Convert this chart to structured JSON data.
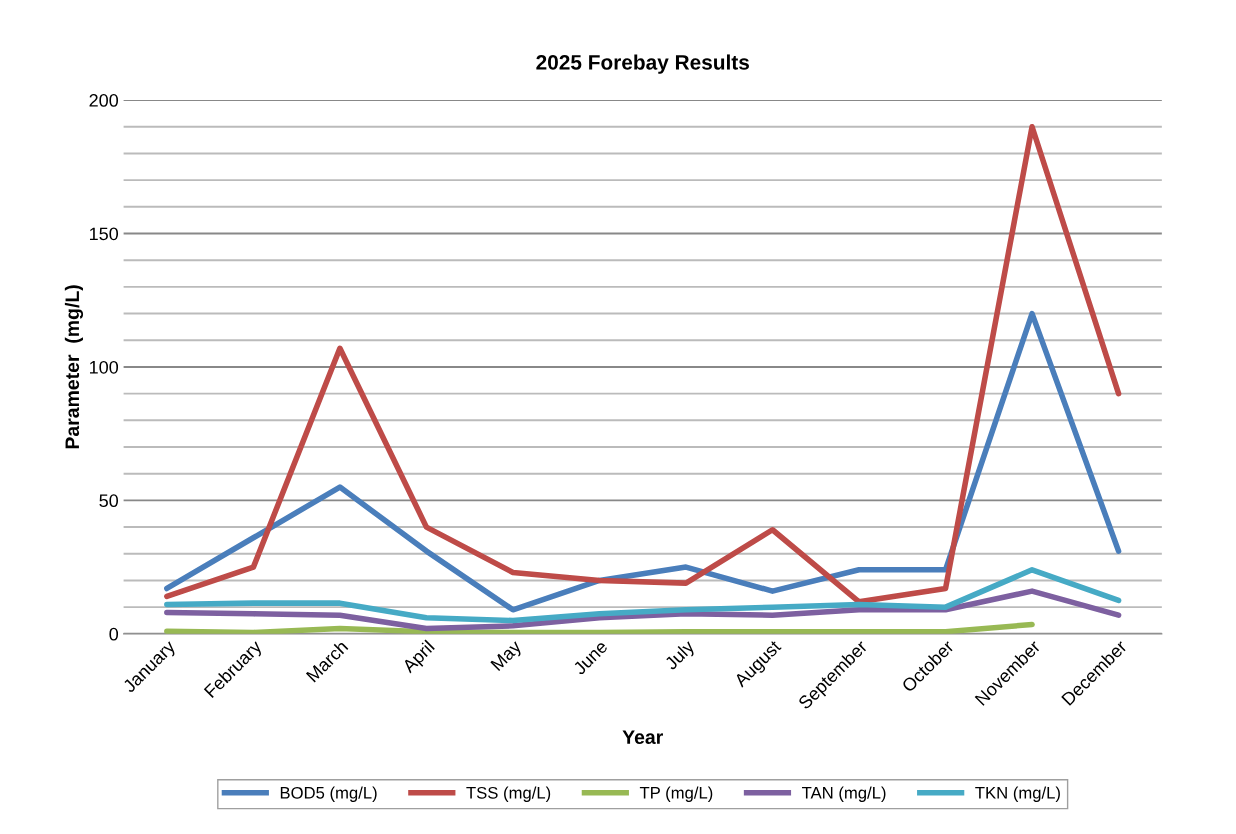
{
  "chart_data": {
    "type": "line",
    "title": "2025 Forebay Results",
    "xlabel": "Year",
    "ylabel": "Parameter  (mg/L)",
    "categories": [
      "January",
      "February",
      "March",
      "April",
      "May",
      "June",
      "July",
      "August",
      "September",
      "October",
      "November",
      "December"
    ],
    "series": [
      {
        "name": "BOD5 (mg/L)",
        "color": "#4a7ebb",
        "values": [
          17,
          36,
          55,
          31,
          9,
          20,
          25,
          16,
          24,
          24,
          120,
          31
        ]
      },
      {
        "name": "TSS (mg/L)",
        "color": "#be4b48",
        "values": [
          14,
          25,
          107,
          40,
          23,
          20,
          19,
          39,
          12,
          17,
          190,
          90
        ]
      },
      {
        "name": "TP (mg/L)",
        "color": "#98b954",
        "values": [
          1,
          0.5,
          2,
          0.8,
          0.5,
          0.5,
          0.8,
          0.8,
          0.8,
          0.8,
          3.5,
          null
        ]
      },
      {
        "name": "TAN (mg/L)",
        "color": "#7d60a0",
        "values": [
          8,
          7.5,
          7,
          2,
          3,
          6,
          7.5,
          7,
          9,
          9,
          16,
          7
        ]
      },
      {
        "name": "TKN (mg/L)",
        "color": "#46aac5",
        "values": [
          11,
          11.5,
          11.5,
          6,
          5,
          7.5,
          9,
          10,
          11,
          10,
          24,
          12.5
        ]
      }
    ],
    "ylim": [
      0,
      200
    ],
    "yticks": [
      0,
      {
        "value": 10,
        "label": null
      },
      {
        "value": 20,
        "label": null
      },
      {
        "value": 30,
        "label": null
      },
      {
        "value": 40,
        "label": null
      },
      50,
      {
        "value": 60,
        "label": null
      },
      {
        "value": 70,
        "label": null
      },
      {
        "value": 80,
        "label": null
      },
      {
        "value": 90,
        "label": null
      },
      100,
      {
        "value": 110,
        "label": null
      },
      {
        "value": 120,
        "label": null
      },
      {
        "value": 130,
        "label": null
      },
      {
        "value": 140,
        "label": null
      },
      150,
      {
        "value": 160,
        "label": null
      },
      {
        "value": 170,
        "label": null
      },
      {
        "value": 180,
        "label": null
      },
      {
        "value": 190,
        "label": null
      },
      200
    ],
    "grid": "y",
    "legend": "bottom",
    "marker": "none",
    "line_style": "solid"
  }
}
